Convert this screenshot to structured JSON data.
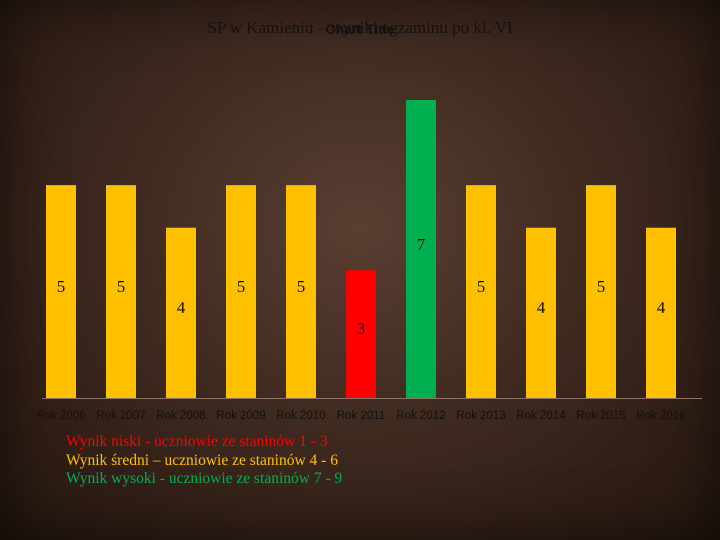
{
  "chart_data": {
    "type": "bar",
    "title": "SP w Kamieniu – wyniki egzaminu po kl. VI",
    "overlay_title": "Chart Title",
    "categories": [
      "Rok 2006",
      "Rok 2007",
      "Rok 2008",
      "Rok 2009",
      "Rok 2010",
      "Rok 2011",
      "Rok 2012",
      "Rok 2013",
      "Rok 2014",
      "Rok 2015",
      "Rok 2016"
    ],
    "values": [
      5,
      5,
      4,
      5,
      5,
      3,
      7,
      5,
      4,
      5,
      4
    ],
    "bar_colors": [
      "#ffc000",
      "#ffc000",
      "#ffc000",
      "#ffc000",
      "#ffc000",
      "#ff0000",
      "#00b050",
      "#ffc000",
      "#ffc000",
      "#ffc000",
      "#ffc000"
    ],
    "ylim": [
      0,
      7
    ],
    "xlabel": "",
    "ylabel": "",
    "grid": false,
    "legend": [
      {
        "label": "Wynik niski - uczniowie ze staninów 1 - 3",
        "color": "#ff0000"
      },
      {
        "label": "Wynik średni – uczniowie ze staninów 4 - 6",
        "color": "#ffc000"
      },
      {
        "label": "Wynik wysoki - uczniowie ze staninów 7 - 9",
        "color": "#00b050"
      }
    ]
  }
}
